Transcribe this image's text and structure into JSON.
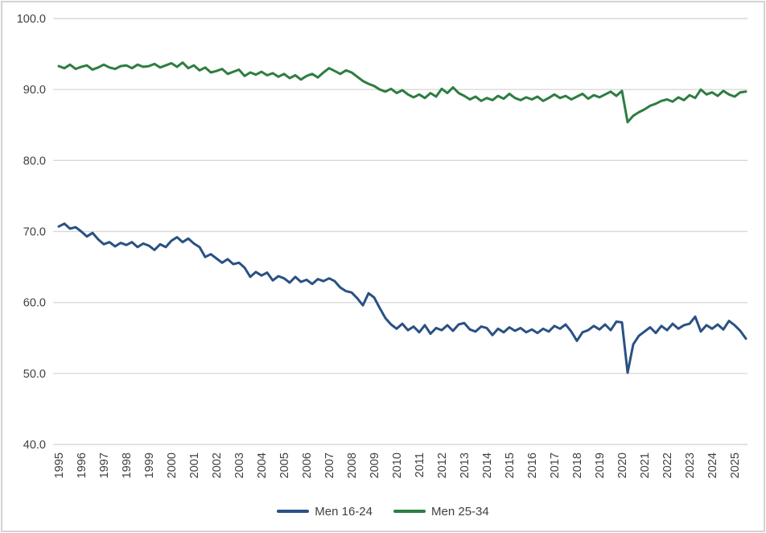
{
  "chart": {
    "background_color": "#FFFFFF",
    "frame_border_color": "#D3D3D3",
    "gridline_color": "#D9D9D9",
    "tick_label_color": "#404040"
  },
  "chart_data": {
    "type": "line",
    "title": "",
    "xlabel": "",
    "ylabel": "",
    "grid": true,
    "legend_position": "bottom-center",
    "y_axis": {
      "min": 40.0,
      "max": 100.0,
      "tick_values": [
        100.0,
        90.0,
        80.0,
        70.0,
        60.0,
        50.0,
        40.0
      ],
      "tick_format_decimals": 1
    },
    "x_axis": {
      "tick_years": [
        1995,
        1996,
        1997,
        1998,
        1999,
        2000,
        2001,
        2002,
        2003,
        2004,
        2005,
        2006,
        2007,
        2008,
        2009,
        2010,
        2011,
        2012,
        2013,
        2014,
        2015,
        2016,
        2017,
        2018,
        2019,
        2020,
        2021,
        2022,
        2023,
        2024,
        2025
      ],
      "label_rotation_degrees": -90,
      "range": [
        1995.0,
        2025.6
      ]
    },
    "x_start": 1995.0,
    "x_step": 0.25,
    "series": [
      {
        "name": "Men 16-24",
        "color": "#2A5183",
        "values": [
          70.7,
          71.1,
          70.4,
          70.6,
          70.0,
          69.3,
          69.8,
          68.9,
          68.2,
          68.5,
          67.9,
          68.4,
          68.1,
          68.5,
          67.8,
          68.3,
          68.0,
          67.4,
          68.2,
          67.8,
          68.7,
          69.2,
          68.5,
          69.0,
          68.3,
          67.8,
          66.4,
          66.8,
          66.2,
          65.6,
          66.1,
          65.4,
          65.6,
          64.9,
          63.6,
          64.3,
          63.8,
          64.2,
          63.1,
          63.7,
          63.4,
          62.8,
          63.6,
          62.9,
          63.2,
          62.6,
          63.3,
          63.0,
          63.4,
          63.0,
          62.1,
          61.6,
          61.4,
          60.6,
          59.6,
          61.3,
          60.7,
          59.2,
          57.8,
          56.9,
          56.3,
          57.0,
          56.1,
          56.6,
          55.8,
          56.8,
          55.6,
          56.4,
          56.1,
          56.8,
          56.0,
          56.9,
          57.1,
          56.2,
          55.9,
          56.6,
          56.4,
          55.4,
          56.3,
          55.8,
          56.5,
          56.0,
          56.4,
          55.8,
          56.2,
          55.7,
          56.3,
          55.9,
          56.7,
          56.3,
          56.9,
          55.9,
          54.6,
          55.8,
          56.1,
          56.7,
          56.2,
          56.9,
          56.1,
          57.3,
          57.2,
          50.1,
          54.1,
          55.3,
          55.9,
          56.5,
          55.7,
          56.7,
          56.1,
          57.0,
          56.3,
          56.8,
          57.0,
          58.0,
          55.9,
          56.8,
          56.3,
          56.9,
          56.2,
          57.4,
          56.8,
          56.0,
          54.9
        ]
      },
      {
        "name": "Men 25-34",
        "color": "#2E7D41",
        "values": [
          93.3,
          93.0,
          93.5,
          92.9,
          93.2,
          93.4,
          92.8,
          93.1,
          93.5,
          93.1,
          92.9,
          93.3,
          93.4,
          93.0,
          93.5,
          93.2,
          93.3,
          93.6,
          93.1,
          93.4,
          93.7,
          93.2,
          93.8,
          93.0,
          93.4,
          92.7,
          93.1,
          92.4,
          92.6,
          92.9,
          92.2,
          92.5,
          92.8,
          91.9,
          92.4,
          92.1,
          92.5,
          92.0,
          92.3,
          91.8,
          92.2,
          91.6,
          92.0,
          91.4,
          91.9,
          92.2,
          91.7,
          92.4,
          93.0,
          92.6,
          92.2,
          92.7,
          92.4,
          91.8,
          91.2,
          90.8,
          90.5,
          90.0,
          89.7,
          90.1,
          89.5,
          89.9,
          89.3,
          88.9,
          89.3,
          88.8,
          89.5,
          89.0,
          90.1,
          89.5,
          90.3,
          89.5,
          89.1,
          88.6,
          89.0,
          88.4,
          88.8,
          88.5,
          89.1,
          88.7,
          89.4,
          88.8,
          88.5,
          88.9,
          88.6,
          89.0,
          88.4,
          88.8,
          89.3,
          88.8,
          89.1,
          88.6,
          89.0,
          89.4,
          88.7,
          89.2,
          88.9,
          89.3,
          89.7,
          89.1,
          89.8,
          85.4,
          86.3,
          86.8,
          87.2,
          87.7,
          88.0,
          88.4,
          88.6,
          88.3,
          88.9,
          88.5,
          89.2,
          88.8,
          90.0,
          89.3,
          89.6,
          89.1,
          89.8,
          89.3,
          89.0,
          89.6,
          89.7
        ]
      }
    ]
  },
  "legend": {
    "items": [
      {
        "label": "Men 16-24"
      },
      {
        "label": "Men 25-34"
      }
    ]
  }
}
